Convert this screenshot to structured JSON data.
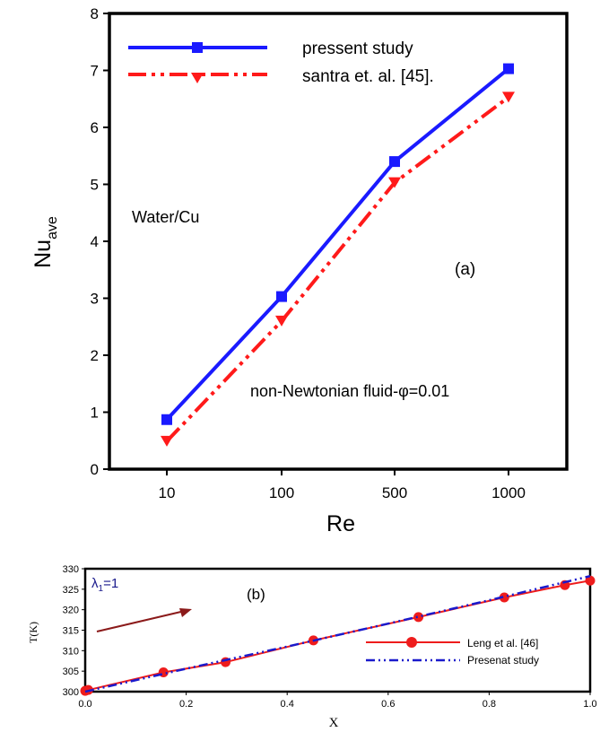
{
  "chart_data": [
    {
      "type": "line",
      "categories": [
        "10",
        "100",
        "500",
        "1000"
      ],
      "xlabel": "Re",
      "ylabel": "Nu",
      "ylabel_sub": "ave",
      "ylim": [
        0,
        8
      ],
      "yticks": [
        "0",
        "1",
        "2",
        "3",
        "4",
        "5",
        "6",
        "7",
        "8"
      ],
      "series": [
        {
          "name": "pressent study",
          "values": [
            0.87,
            3.03,
            5.4,
            7.03
          ],
          "color": "#1a1aff",
          "marker": "square",
          "dash": "solid"
        },
        {
          "name": "santra et. al. [45].",
          "values": [
            0.49,
            2.6,
            5.03,
            6.53
          ],
          "color": "#ff1a1a",
          "marker": "triangle-down",
          "dash": "dash-dot-dot"
        }
      ],
      "annotations": {
        "fluid": "Water/Cu",
        "panel": "(a)",
        "condition": "non-Newtonian fluid-φ=0.01"
      },
      "legend_position": "top-left",
      "grid": false
    },
    {
      "type": "line",
      "xlabel": "X",
      "ylabel": "T(K)",
      "xlim": [
        0,
        1
      ],
      "ylim": [
        300,
        330
      ],
      "xticks": [
        "0.0",
        "0.2",
        "0.4",
        "0.6",
        "0.8",
        "1.0"
      ],
      "yticks": [
        "300",
        "305",
        "310",
        "315",
        "320",
        "325",
        "330"
      ],
      "series": [
        {
          "name": "Leng et al. [46]",
          "x": [
            0,
            0.006,
            0.155,
            0.278,
            0.452,
            0.66,
            0.83,
            0.95,
            1.0
          ],
          "y": [
            300.2,
            300.4,
            304.7,
            307.2,
            312.5,
            318.2,
            323,
            326,
            327.1
          ],
          "color": "#ee1c1c",
          "marker": "circle",
          "dash": "solid"
        },
        {
          "name": "Presenat study",
          "x": [
            0,
            0.2,
            0.4,
            0.6,
            0.8,
            1.0
          ],
          "y": [
            300,
            305.6,
            311,
            316.6,
            322.3,
            328.2
          ],
          "color": "#1a1acc",
          "marker": "none",
          "dash": "dash-dot-dot"
        }
      ],
      "annotations": {
        "lambda": "λ",
        "lambda_sub": "1",
        "lambda_value": "=1",
        "panel": "(b)"
      },
      "legend_position": "bottom-right",
      "grid": false
    }
  ]
}
